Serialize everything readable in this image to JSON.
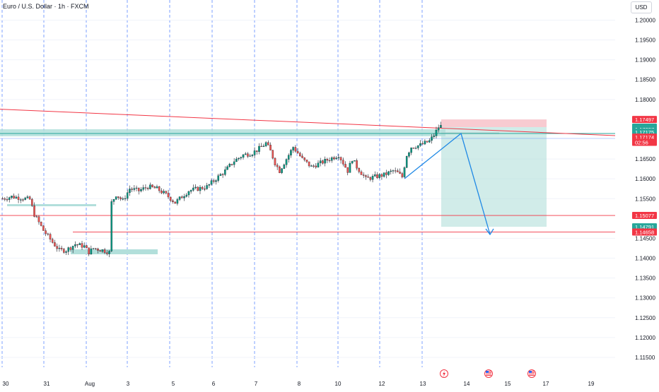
{
  "header": {
    "symbol": "Euro / U.S. Dollar · 1h · FXCM",
    "currency_button": "USD"
  },
  "colors": {
    "up": "#26a69a",
    "down": "#ef5350",
    "candle_body": "#089981",
    "grid_vertical": "#2962ff",
    "zone_green": "#b2dfdb",
    "zone_red": "#f8bbd0",
    "line_red": "#f23645",
    "line_blue": "#2962ff",
    "axis_text": "#131722"
  },
  "icons": {
    "event_1": "lightning-icon",
    "event_2": "us-flag-icon",
    "event_3": "us-flag-icon"
  },
  "chart_data": {
    "type": "candlestick",
    "ylim": [
      1.1125,
      1.204
    ],
    "price_ticks": [
      "1.20000",
      "1.19500",
      "1.19000",
      "1.18500",
      "1.18000",
      "1.16500",
      "1.16000",
      "1.15500",
      "1.14500",
      "1.14000",
      "1.13500",
      "1.13000",
      "1.12500",
      "1.12000",
      "1.11500"
    ],
    "time_ticks": [
      "30",
      "31",
      "Aug",
      "3",
      "4",
      "5",
      "6",
      "7",
      "8",
      "10",
      "11",
      "12",
      "13",
      "14",
      "15",
      "17",
      "19"
    ],
    "price_labels": [
      {
        "value": "1.17497",
        "price": 1.17497,
        "color": "#f23645"
      },
      {
        "value": "1.17303",
        "price": 1.17303,
        "color": "#26a69a"
      },
      {
        "value": "1.17297",
        "price": 1.1725,
        "color": "#26a69a"
      },
      {
        "value": "1.17175",
        "price": 1.17175,
        "color": "#26a69a"
      },
      {
        "value": "1.17174",
        "price": 1.1705,
        "color": "#f23645"
      },
      {
        "value": "02:56",
        "price": 1.1692,
        "color": "#f23645"
      },
      {
        "value": "1.15077",
        "price": 1.15077,
        "color": "#f23645"
      },
      {
        "value": "1.14791",
        "price": 1.14791,
        "color": "#26a69a"
      },
      {
        "value": "1.14658",
        "price": 1.14658,
        "color": "#f23645"
      }
    ],
    "path": [
      [
        0,
        1.155
      ],
      [
        4,
        1.1555
      ],
      [
        8,
        1.1552
      ],
      [
        12,
        1.1548
      ],
      [
        14,
        1.151
      ],
      [
        18,
        1.147
      ],
      [
        22,
        1.144
      ],
      [
        25,
        1.142
      ],
      [
        28,
        1.142
      ],
      [
        32,
        1.1435
      ],
      [
        36,
        1.143
      ],
      [
        38,
        1.1415
      ],
      [
        40,
        1.1425
      ],
      [
        44,
        1.142
      ],
      [
        47,
        1.1415
      ],
      [
        48,
        1.154
      ],
      [
        50,
        1.156
      ],
      [
        53,
        1.1545
      ],
      [
        56,
        1.1575
      ],
      [
        60,
        1.157
      ],
      [
        64,
        1.158
      ],
      [
        68,
        1.1575
      ],
      [
        72,
        1.156
      ],
      [
        76,
        1.154
      ],
      [
        78,
        1.155
      ],
      [
        82,
        1.157
      ],
      [
        86,
        1.1575
      ],
      [
        90,
        1.158
      ],
      [
        94,
        1.16
      ],
      [
        98,
        1.162
      ],
      [
        102,
        1.1645
      ],
      [
        106,
        1.166
      ],
      [
        110,
        1.1665
      ],
      [
        114,
        1.168
      ],
      [
        116,
        1.169
      ],
      [
        118,
        1.167
      ],
      [
        120,
        1.164
      ],
      [
        122,
        1.162
      ],
      [
        124,
        1.164
      ],
      [
        128,
        1.168
      ],
      [
        132,
        1.165
      ],
      [
        136,
        1.163
      ],
      [
        140,
        1.164
      ],
      [
        144,
        1.165
      ],
      [
        148,
        1.166
      ],
      [
        150,
        1.164
      ],
      [
        152,
        1.162
      ],
      [
        154,
        1.165
      ],
      [
        156,
        1.163
      ],
      [
        160,
        1.16
      ],
      [
        164,
        1.1605
      ],
      [
        168,
        1.161
      ],
      [
        172,
        1.162
      ],
      [
        174,
        1.1615
      ],
      [
        176,
        1.1605
      ],
      [
        178,
        1.166
      ],
      [
        180,
        1.168
      ],
      [
        184,
        1.1685
      ],
      [
        188,
        1.1695
      ],
      [
        190,
        1.171
      ],
      [
        192,
        1.173
      ],
      [
        194,
        1.1735
      ]
    ]
  },
  "drawings": {
    "trend_line_red": {
      "from": [
        1.177,
        0.0
      ],
      "to": [
        1.1716,
        1.0
      ]
    },
    "trade_entry": 1.17303,
    "trade_stop": 1.17497,
    "trade_target": 1.14791,
    "support_line": 1.15077,
    "support_line_2": 1.14658
  }
}
